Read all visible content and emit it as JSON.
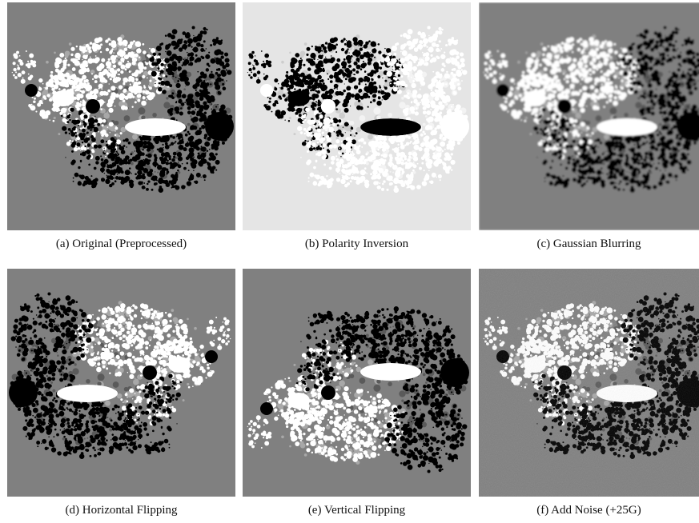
{
  "panels": [
    {
      "caption": "(a) Original (Preprocessed)"
    },
    {
      "caption": "(b) Polarity Inversion"
    },
    {
      "caption": "(c) Gaussian Blurring"
    },
    {
      "caption": "(d) Horizontal Flipping"
    },
    {
      "caption": "(e) Vertical Flipping"
    },
    {
      "caption": "(f) Add Noise (+25G)"
    }
  ]
}
